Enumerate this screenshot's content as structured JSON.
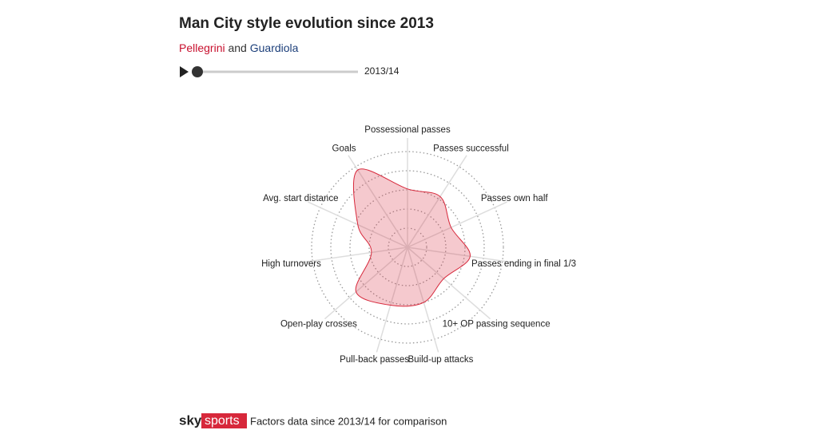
{
  "chart_data": {
    "type": "radar",
    "title": "Man City style evolution since 2013",
    "subtitle": {
      "part1": "Pellegrini",
      "part2": "and",
      "part3": "Guardiola"
    },
    "season": "2013/14",
    "categories": [
      "Possessional passes",
      "Passes successful",
      "Passes own half",
      "Passes ending in final 1/3",
      "10+ OP passing sequence",
      "Build-up attacks",
      "Pull-back passes",
      "Open-play crosses",
      "High turnovers",
      "Avg. start distance",
      "Goals"
    ],
    "series": [
      {
        "name": "Pellegrini",
        "color": "#d7283b",
        "values": [
          61,
          63,
          50,
          66,
          50,
          60,
          63,
          71,
          38,
          57,
          96
        ]
      }
    ],
    "rlim": [
      0,
      100
    ],
    "rticks": [
      20,
      40,
      60,
      80,
      100
    ],
    "grid": true,
    "footer": {
      "logo1": "sky",
      "logo2": "sports",
      "note": "Factors data since 2013/14 for comparison"
    }
  }
}
